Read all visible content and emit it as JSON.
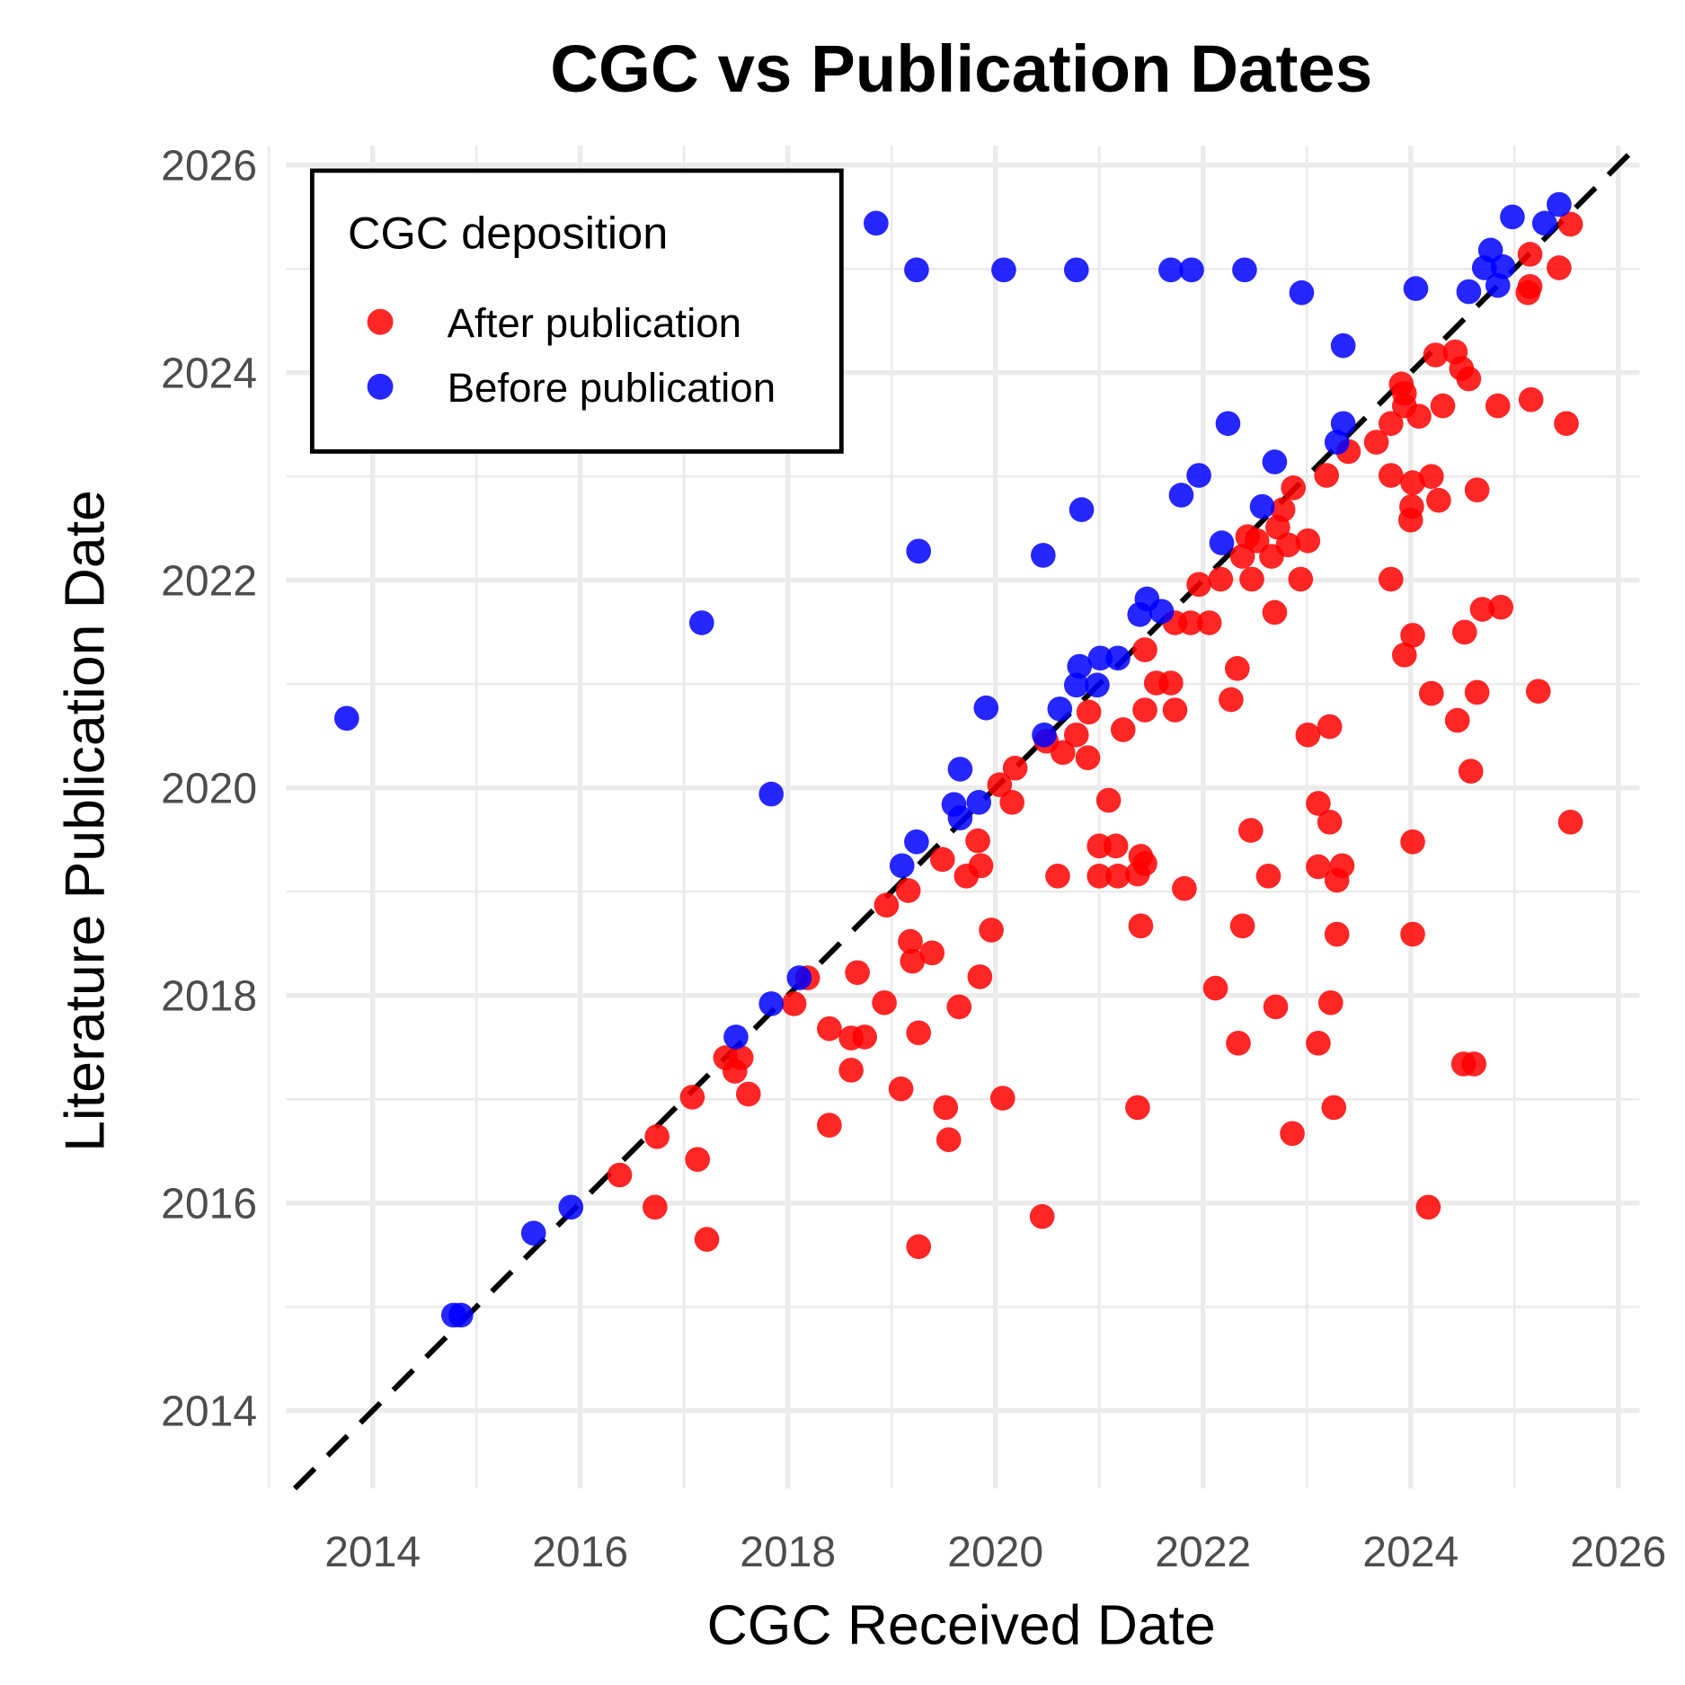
{
  "chart_data": {
    "type": "scatter",
    "title": "CGC vs Publication Dates",
    "xlabel": "CGC Received Date",
    "ylabel": "Literature Publication Date",
    "xlim": [
      2013.2,
      2026.2
    ],
    "ylim": [
      2013.25,
      2026.2
    ],
    "xticks": [
      "2014",
      "2016",
      "2018",
      "2020",
      "2022",
      "2024",
      "2026"
    ],
    "yticks": [
      "2014",
      "2016",
      "2018",
      "2020",
      "2022",
      "2024",
      "2026"
    ],
    "grid": true,
    "reference_line": {
      "type": "y = x",
      "style": "dashed",
      "color": "#000000"
    },
    "legend": {
      "title": "CGC deposition",
      "placement": "top-left"
    },
    "series": [
      {
        "name": "After publication",
        "color": "#ff0000",
        "points": [
          [
            2016.38,
            2016.27
          ],
          [
            2016.72,
            2015.96
          ],
          [
            2016.74,
            2016.64
          ],
          [
            2017.08,
            2017.02
          ],
          [
            2017.13,
            2016.42
          ],
          [
            2017.22,
            2015.65
          ],
          [
            2017.4,
            2017.4
          ],
          [
            2017.55,
            2017.4
          ],
          [
            2017.49,
            2017.27
          ],
          [
            2017.62,
            2017.05
          ],
          [
            2018.06,
            2017.92
          ],
          [
            2018.19,
            2018.17
          ],
          [
            2018.4,
            2017.68
          ],
          [
            2018.4,
            2016.75
          ],
          [
            2018.61,
            2017.59
          ],
          [
            2018.74,
            2017.6
          ],
          [
            2018.61,
            2017.28
          ],
          [
            2018.67,
            2018.22
          ],
          [
            2018.93,
            2017.93
          ],
          [
            2018.95,
            2018.87
          ],
          [
            2019.09,
            2017.1
          ],
          [
            2019.16,
            2019.01
          ],
          [
            2019.18,
            2018.52
          ],
          [
            2019.2,
            2018.33
          ],
          [
            2019.26,
            2017.64
          ],
          [
            2019.26,
            2015.58
          ],
          [
            2019.39,
            2018.41
          ],
          [
            2019.49,
            2019.31
          ],
          [
            2019.52,
            2016.92
          ],
          [
            2019.55,
            2016.61
          ],
          [
            2019.65,
            2017.89
          ],
          [
            2019.72,
            2019.15
          ],
          [
            2019.83,
            2019.49
          ],
          [
            2019.86,
            2019.25
          ],
          [
            2019.85,
            2018.18
          ],
          [
            2019.96,
            2018.63
          ],
          [
            2020.04,
            2020.03
          ],
          [
            2020.16,
            2019.86
          ],
          [
            2020.19,
            2020.19
          ],
          [
            2020.07,
            2017.01
          ],
          [
            2020.45,
            2015.87
          ],
          [
            2020.49,
            2020.45
          ],
          [
            2020.6,
            2019.15
          ],
          [
            2020.65,
            2020.34
          ],
          [
            2020.78,
            2020.51
          ],
          [
            2020.89,
            2020.29
          ],
          [
            2020.9,
            2020.73
          ],
          [
            2021.0,
            2019.44
          ],
          [
            2021.0,
            2019.15
          ],
          [
            2021.09,
            2019.88
          ],
          [
            2021.16,
            2019.44
          ],
          [
            2021.18,
            2019.15
          ],
          [
            2021.23,
            2020.56
          ],
          [
            2021.37,
            2016.92
          ],
          [
            2021.37,
            2019.17
          ],
          [
            2021.4,
            2019.34
          ],
          [
            2021.44,
            2019.27
          ],
          [
            2021.4,
            2018.67
          ],
          [
            2021.44,
            2021.33
          ],
          [
            2021.44,
            2020.75
          ],
          [
            2021.55,
            2021.01
          ],
          [
            2021.69,
            2021.01
          ],
          [
            2021.73,
            2020.75
          ],
          [
            2021.82,
            2019.03
          ],
          [
            2021.73,
            2021.59
          ],
          [
            2021.88,
            2021.59
          ],
          [
            2022.06,
            2021.59
          ],
          [
            2021.96,
            2021.96
          ],
          [
            2022.12,
            2018.07
          ],
          [
            2022.17,
            2022.01
          ],
          [
            2022.27,
            2020.85
          ],
          [
            2022.33,
            2021.15
          ],
          [
            2022.34,
            2017.54
          ],
          [
            2022.38,
            2018.67
          ],
          [
            2022.38,
            2022.23
          ],
          [
            2022.43,
            2022.42
          ],
          [
            2022.47,
            2022.01
          ],
          [
            2022.46,
            2019.59
          ],
          [
            2022.52,
            2022.38
          ],
          [
            2022.63,
            2019.15
          ],
          [
            2022.66,
            2022.23
          ],
          [
            2022.69,
            2021.69
          ],
          [
            2022.7,
            2017.89
          ],
          [
            2022.72,
            2022.51
          ],
          [
            2022.77,
            2022.68
          ],
          [
            2022.82,
            2022.34
          ],
          [
            2022.86,
            2016.67
          ],
          [
            2022.87,
            2022.89
          ],
          [
            2022.94,
            2022.01
          ],
          [
            2023.01,
            2022.38
          ],
          [
            2023.01,
            2020.51
          ],
          [
            2023.11,
            2017.54
          ],
          [
            2023.11,
            2019.85
          ],
          [
            2023.11,
            2019.24
          ],
          [
            2023.19,
            2023.01
          ],
          [
            2023.22,
            2020.59
          ],
          [
            2023.22,
            2019.67
          ],
          [
            2023.23,
            2017.93
          ],
          [
            2023.26,
            2016.92
          ],
          [
            2023.29,
            2018.59
          ],
          [
            2023.29,
            2019.11
          ],
          [
            2023.34,
            2019.25
          ],
          [
            2023.4,
            2023.24
          ],
          [
            2023.67,
            2023.33
          ],
          [
            2023.81,
            2023.51
          ],
          [
            2023.81,
            2023.01
          ],
          [
            2023.81,
            2022.01
          ],
          [
            2023.91,
            2023.89
          ],
          [
            2023.94,
            2023.8
          ],
          [
            2023.94,
            2023.68
          ],
          [
            2023.94,
            2021.28
          ],
          [
            2024.0,
            2022.58
          ],
          [
            2024.01,
            2022.71
          ],
          [
            2024.02,
            2022.94
          ],
          [
            2024.02,
            2021.47
          ],
          [
            2024.02,
            2019.48
          ],
          [
            2024.02,
            2018.59
          ],
          [
            2024.08,
            2023.58
          ],
          [
            2024.17,
            2015.96
          ],
          [
            2024.2,
            2020.91
          ],
          [
            2024.2,
            2023.0
          ],
          [
            2024.24,
            2024.17
          ],
          [
            2024.43,
            2024.2
          ],
          [
            2024.27,
            2022.77
          ],
          [
            2024.31,
            2023.68
          ],
          [
            2024.45,
            2020.65
          ],
          [
            2024.49,
            2024.04
          ],
          [
            2024.56,
            2023.94
          ],
          [
            2024.52,
            2021.5
          ],
          [
            2024.51,
            2017.34
          ],
          [
            2024.61,
            2017.34
          ],
          [
            2024.58,
            2020.16
          ],
          [
            2024.64,
            2022.87
          ],
          [
            2024.64,
            2020.92
          ],
          [
            2024.69,
            2021.72
          ],
          [
            2024.84,
            2023.68
          ],
          [
            2024.87,
            2021.74
          ],
          [
            2025.13,
            2024.77
          ],
          [
            2025.15,
            2024.83
          ],
          [
            2025.15,
            2025.14
          ],
          [
            2025.16,
            2023.74
          ],
          [
            2025.23,
            2020.93
          ],
          [
            2025.43,
            2025.01
          ],
          [
            2025.5,
            2023.51
          ],
          [
            2025.54,
            2025.43
          ],
          [
            2025.54,
            2019.67
          ]
        ]
      },
      {
        "name": "Before publication",
        "color": "#0000ff",
        "points": [
          [
            2013.75,
            2020.67
          ],
          [
            2014.78,
            2014.92
          ],
          [
            2014.85,
            2014.92
          ],
          [
            2015.55,
            2015.71
          ],
          [
            2015.91,
            2015.96
          ],
          [
            2017.17,
            2021.59
          ],
          [
            2017.5,
            2017.6
          ],
          [
            2017.84,
            2019.94
          ],
          [
            2017.84,
            2017.92
          ],
          [
            2018.11,
            2018.17
          ],
          [
            2018.85,
            2025.44
          ],
          [
            2019.24,
            2024.99
          ],
          [
            2019.1,
            2019.25
          ],
          [
            2019.24,
            2019.48
          ],
          [
            2019.26,
            2022.28
          ],
          [
            2019.6,
            2019.84
          ],
          [
            2019.66,
            2020.18
          ],
          [
            2019.66,
            2019.71
          ],
          [
            2019.84,
            2019.86
          ],
          [
            2019.91,
            2020.77
          ],
          [
            2020.08,
            2024.99
          ],
          [
            2020.46,
            2022.24
          ],
          [
            2020.47,
            2020.51
          ],
          [
            2020.62,
            2020.76
          ],
          [
            2020.78,
            2024.99
          ],
          [
            2020.78,
            2020.99
          ],
          [
            2020.81,
            2021.17
          ],
          [
            2020.83,
            2022.68
          ],
          [
            2020.98,
            2020.99
          ],
          [
            2021.01,
            2021.25
          ],
          [
            2021.18,
            2021.25
          ],
          [
            2021.39,
            2021.67
          ],
          [
            2021.46,
            2021.82
          ],
          [
            2021.6,
            2021.7
          ],
          [
            2021.69,
            2024.99
          ],
          [
            2021.89,
            2024.99
          ],
          [
            2021.79,
            2022.82
          ],
          [
            2021.96,
            2023.01
          ],
          [
            2022.18,
            2022.36
          ],
          [
            2022.24,
            2023.51
          ],
          [
            2022.4,
            2024.99
          ],
          [
            2022.57,
            2022.71
          ],
          [
            2022.69,
            2023.14
          ],
          [
            2022.95,
            2024.77
          ],
          [
            2023.29,
            2023.33
          ],
          [
            2023.35,
            2023.51
          ],
          [
            2023.35,
            2024.26
          ],
          [
            2024.05,
            2024.81
          ],
          [
            2024.56,
            2024.78
          ],
          [
            2024.71,
            2025.01
          ],
          [
            2024.77,
            2025.18
          ],
          [
            2024.84,
            2024.84
          ],
          [
            2024.89,
            2025.02
          ],
          [
            2024.98,
            2025.5
          ],
          [
            2025.29,
            2025.44
          ],
          [
            2025.43,
            2025.62
          ]
        ]
      }
    ]
  }
}
